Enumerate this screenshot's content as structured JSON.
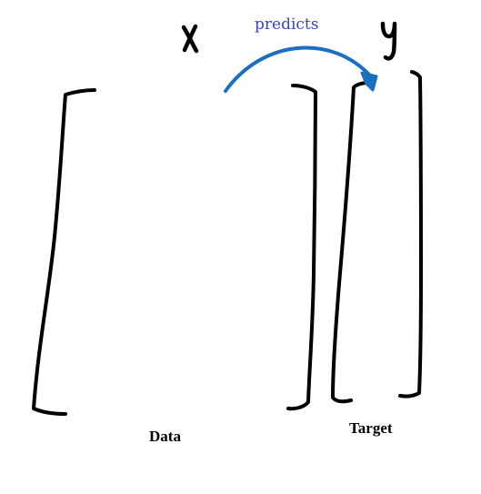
{
  "diagram": {
    "matrix_symbol": "X",
    "vector_symbol": "y",
    "arrow_label": "predicts",
    "data_label": "Data",
    "target_label": "Target"
  },
  "colors": {
    "ink": "#000000",
    "arrow": "#1a6fc0",
    "arrow_label": "#3a44c6",
    "background": "#ffffff"
  }
}
